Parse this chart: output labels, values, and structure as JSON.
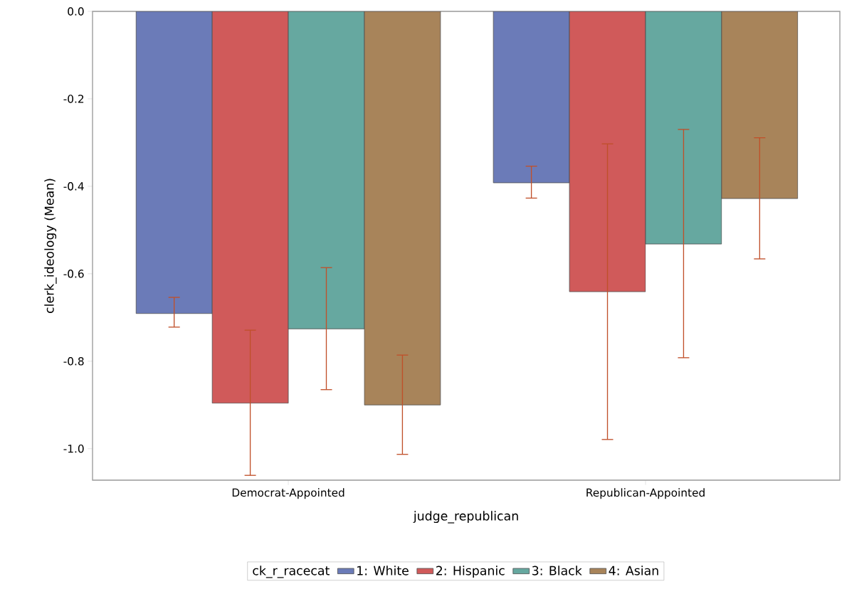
{
  "chart_data": {
    "type": "bar",
    "xlabel": "judge_republican",
    "ylabel": "clerk_ideology (Mean)",
    "legend_title": "ck_r_racecat",
    "categories": [
      "Democrat-Appointed",
      "Republican-Appointed"
    ],
    "series": [
      {
        "name": "1: White",
        "color": "#6b7bb8",
        "values": [
          -0.691,
          -0.392
        ],
        "errors": [
          [
            -0.722,
            -0.654
          ],
          [
            -0.427,
            -0.354
          ]
        ]
      },
      {
        "name": "2: Hispanic",
        "color": "#d05a5a",
        "values": [
          -0.896,
          -0.641
        ],
        "errors": [
          [
            -1.061,
            -0.729
          ],
          [
            -0.979,
            -0.303
          ]
        ]
      },
      {
        "name": "3: Black",
        "color": "#66a8a0",
        "values": [
          -0.726,
          -0.532
        ],
        "errors": [
          [
            -0.865,
            -0.586
          ],
          [
            -0.792,
            -0.27
          ]
        ]
      },
      {
        "name": "4: Asian",
        "color": "#a8845a",
        "values": [
          -0.9,
          -0.428
        ],
        "errors": [
          [
            -1.013,
            -0.786
          ],
          [
            -0.566,
            -0.289
          ]
        ]
      }
    ],
    "ylim": [
      -1.072,
      0
    ],
    "yticks": [
      {
        "value": -1,
        "label": "-1.0"
      },
      {
        "value": -0.8,
        "label": "-0.8"
      },
      {
        "value": -0.6,
        "label": "-0.6"
      },
      {
        "value": -0.4,
        "label": "-0.4"
      },
      {
        "value": -0.2,
        "label": "-0.2"
      },
      {
        "value": 0,
        "label": "0.0"
      }
    ],
    "legend": "bottom"
  }
}
